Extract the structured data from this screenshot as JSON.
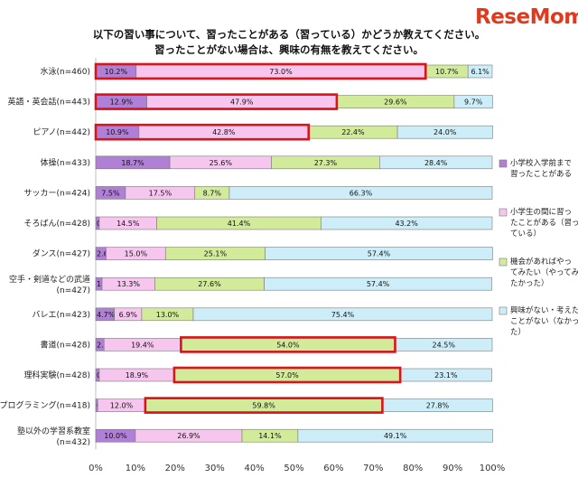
{
  "title_lines": [
    "以下の習い事について、習ったことがある（習っている）かどうか教えてください。",
    "習ったことがない場合は、興味の有無を教えてください。"
  ],
  "logo": "ReseMom",
  "chart_data": {
    "type": "bar",
    "orientation": "horizontal",
    "stacked": true,
    "categories": [
      "水泳(n=460)",
      "英語・英会話(n=443)",
      "ピアノ(n=442)",
      "体操(n=433)",
      "サッカー(n=424)",
      "そろばん(n=428)",
      "ダンス(n=427)",
      "空手・剣道などの武道(n=427)",
      "バレエ(n=423)",
      "書道(n=428)",
      "理科実験(n=428)",
      "プログラミング(n=418)",
      "塾以外の学習系教室(n=432)"
    ],
    "category_lines": [
      [
        "水泳(n=460)"
      ],
      [
        "英語・英会話(n=443)"
      ],
      [
        "ピアノ(n=442)"
      ],
      [
        "体操(n=433)"
      ],
      [
        "サッカー(n=424)"
      ],
      [
        "そろばん(n=428)"
      ],
      [
        "ダンス(n=427)"
      ],
      [
        "空手・剣道などの武道",
        "(n=427)"
      ],
      [
        "バレエ(n=423)"
      ],
      [
        "書道(n=428)"
      ],
      [
        "理科実験(n=428)"
      ],
      [
        "プログラミング(n=418)"
      ],
      [
        "塾以外の学習系教室",
        "(n=432)"
      ]
    ],
    "series": [
      {
        "name": "小学校入学前まで習ったことがある",
        "name_lines": [
          "小学校入学前まで",
          "習ったことがある"
        ],
        "color": "#b07fd6",
        "values": [
          10.2,
          12.9,
          10.9,
          18.7,
          7.5,
          0.9,
          2.6,
          1.6,
          4.7,
          2.1,
          0.9,
          0.5,
          10.0
        ]
      },
      {
        "name": "小学生の間に習ったことがある（習っている）",
        "name_lines": [
          "小学生の間に習っ",
          "たことがある（習っ",
          "ている）"
        ],
        "color": "#f6c6ee",
        "values": [
          73.0,
          47.9,
          42.8,
          25.6,
          17.5,
          14.5,
          15.0,
          13.3,
          6.9,
          19.4,
          18.9,
          12.0,
          26.9
        ]
      },
      {
        "name": "機会があればやってみたい（やってみたかった）",
        "name_lines": [
          "機会があればやっ",
          "てみたい（やってみ",
          "たかった）"
        ],
        "color": "#d2eb9a",
        "values": [
          10.7,
          29.6,
          22.4,
          27.3,
          8.7,
          41.4,
          25.1,
          27.6,
          13.0,
          54.0,
          57.0,
          59.8,
          14.1
        ]
      },
      {
        "name": "興味がない・考えたことがない（なかった）",
        "name_lines": [
          "興味がない・考えた",
          "ことがない（なかっ",
          "た）"
        ],
        "color": "#cdeef8",
        "values": [
          6.1,
          9.7,
          24.0,
          28.4,
          66.3,
          43.2,
          57.4,
          57.4,
          75.4,
          24.5,
          23.1,
          27.8,
          49.1
        ]
      }
    ],
    "highlighted": [
      {
        "category": "水泳(n=460)",
        "series": [
          "小学校入学前まで習ったことがある",
          "小学生の間に習ったことがある（習っている）"
        ]
      },
      {
        "category": "英語・英会話(n=443)",
        "series": [
          "小学校入学前まで習ったことがある",
          "小学生の間に習ったことがある（習っている）"
        ]
      },
      {
        "category": "ピアノ(n=442)",
        "series": [
          "小学校入学前まで習ったことがある",
          "小学生の間に習ったことがある（習っている）"
        ]
      },
      {
        "category": "書道(n=428)",
        "series": [
          "機会があればやってみたい（やってみたかった）"
        ]
      },
      {
        "category": "理科実験(n=428)",
        "series": [
          "機会があればやってみたい（やってみたかった）"
        ]
      },
      {
        "category": "プログラミング(n=418)",
        "series": [
          "機会があればやってみたい（やってみたかった）"
        ]
      }
    ],
    "highlight_color": "#d9141b",
    "xlim": [
      0,
      100
    ],
    "xticks": [
      "0%",
      "10%",
      "20%",
      "30%",
      "40%",
      "50%",
      "60%",
      "70%",
      "80%",
      "90%",
      "100%"
    ],
    "legend_position": "right",
    "grid": false
  }
}
